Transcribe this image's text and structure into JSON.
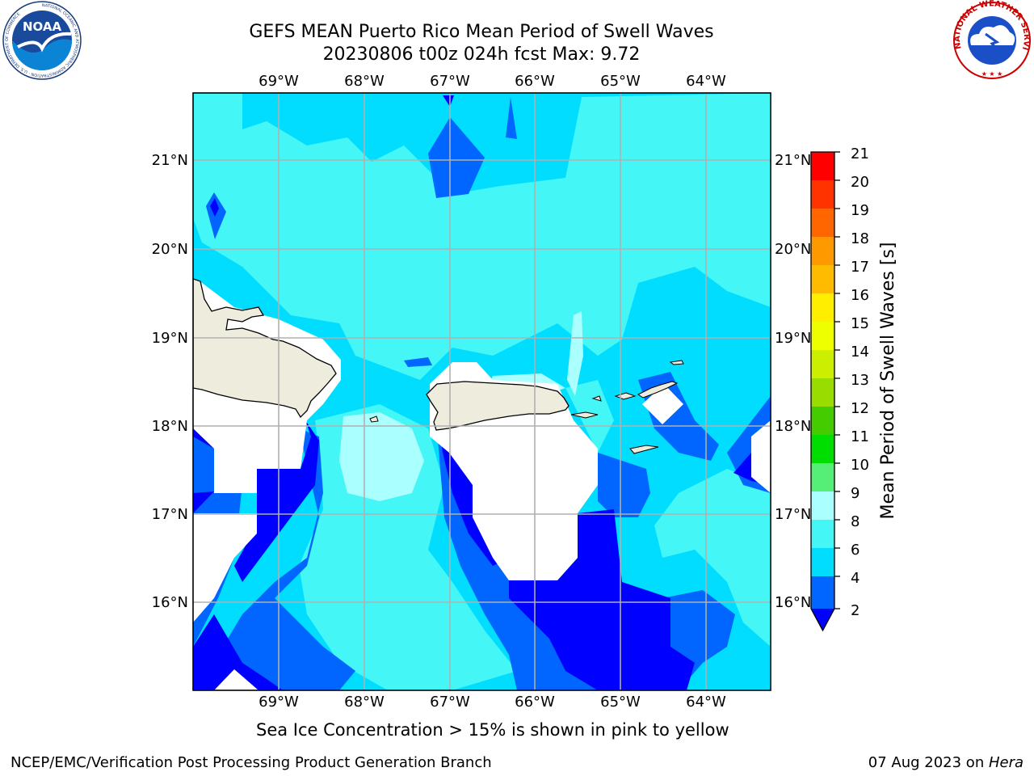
{
  "title": {
    "line1": "GEFS MEAN Puerto Rico Mean Period of Swell Waves",
    "line2": "20230806 t00z 024h fcst   Max: 9.72"
  },
  "logos": {
    "left": {
      "icon": "noaa-logo",
      "text": "NOAA",
      "ring_text": "NATIONAL OCEANIC AND ATMOSPHERIC ADMINISTRATION · U.S. DEPARTMENT OF COMMERCE"
    },
    "right": {
      "icon": "nws-logo",
      "ring_text": "NATIONAL WEATHER SERVICE"
    }
  },
  "map": {
    "lon_labels": [
      "69°W",
      "68°W",
      "67°W",
      "66°W",
      "65°W",
      "64°W"
    ],
    "lat_labels": [
      "21°N",
      "20°N",
      "19°N",
      "18°N",
      "17°N",
      "16°N"
    ],
    "extent": {
      "lon_min": -70.0,
      "lon_max": -63.25,
      "lat_min": 15.0,
      "lat_max": 21.75
    },
    "grid": true
  },
  "colorbar": {
    "label": "Mean Period of Swell Waves [s]",
    "ticks": [
      "21",
      "20",
      "19",
      "18",
      "17",
      "16",
      "15",
      "14",
      "13",
      "12",
      "11",
      "10",
      "9",
      "8",
      "6",
      "4",
      "2"
    ],
    "colors": {
      "under": "#0000ff",
      "b2_4": "#0066ff",
      "b4_6": "#00ddff",
      "b6_8": "#44f6f6",
      "b8_9": "#aaffff",
      "b9_10": "#55ee77",
      "b10_11": "#00dd00",
      "b11_12": "#44cc00",
      "b12_13": "#99dd00",
      "b13_14": "#ccee00",
      "b14_15": "#eeff00",
      "b15_16": "#ffee00",
      "b16_17": "#ffbb00",
      "b17_18": "#ff9900",
      "b18_19": "#ff6600",
      "b19_20": "#ff3300",
      "b20_21": "#ff0000"
    }
  },
  "captions": {
    "sea_ice": "Sea Ice Concentration > 15% is shown in pink to yellow",
    "footer_left": "NCEP/EMC/Verification Post Processing Product Generation Branch",
    "footer_right_prefix": "07 Aug 2023 on ",
    "footer_right_host": "Hera"
  }
}
